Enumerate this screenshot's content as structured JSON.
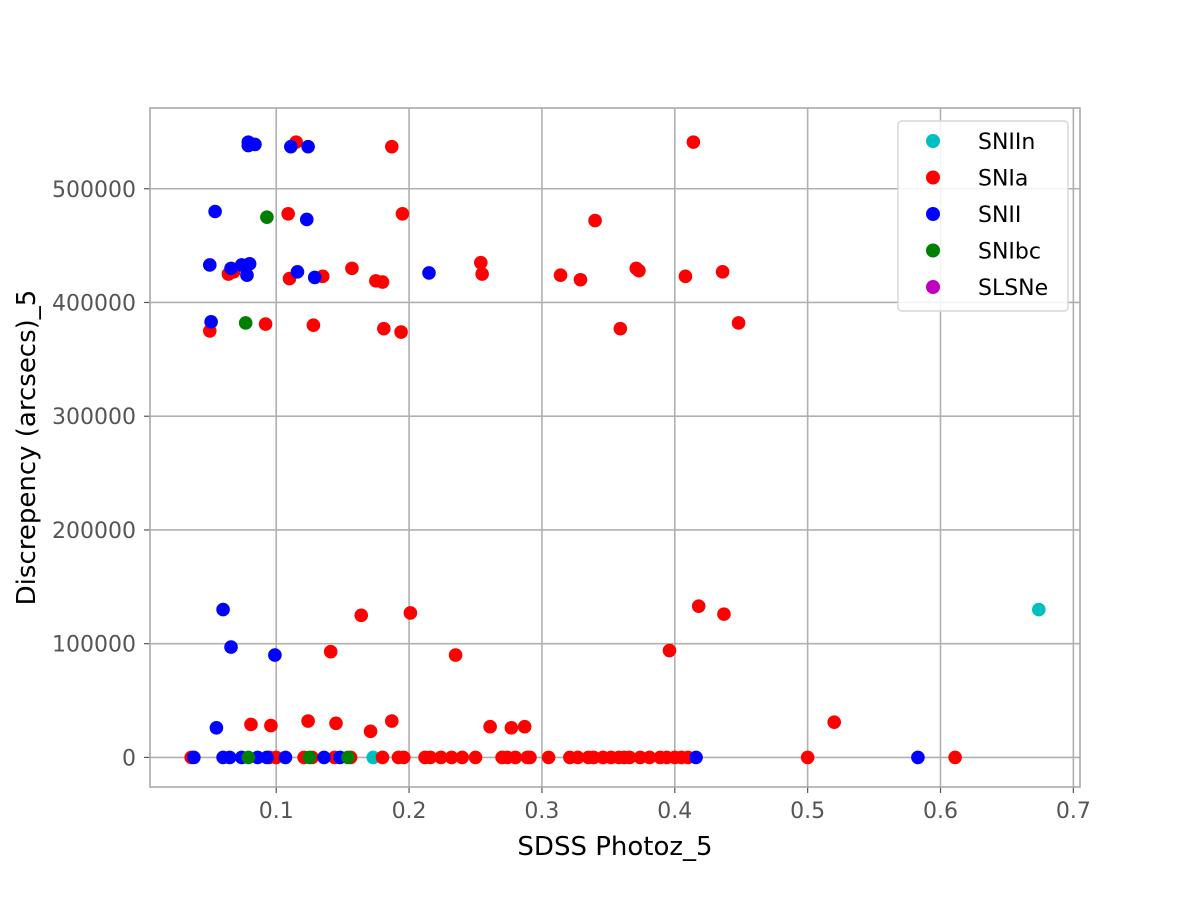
{
  "chart_data": {
    "type": "scatter",
    "title": "",
    "xlabel": "SDSS Photoz_5",
    "ylabel": "Discrepency (arcsecs)_5",
    "xlim": [
      0.005,
      0.705
    ],
    "ylim": [
      -26000,
      571000
    ],
    "xticks": [
      0.1,
      0.2,
      0.3,
      0.4,
      0.5,
      0.6,
      0.7
    ],
    "xtick_labels": [
      "0.1",
      "0.2",
      "0.3",
      "0.4",
      "0.5",
      "0.6",
      "0.7"
    ],
    "yticks": [
      0,
      100000,
      200000,
      300000,
      400000,
      500000
    ],
    "ytick_labels": [
      "0",
      "100000",
      "200000",
      "300000",
      "400000",
      "500000"
    ],
    "grid": true,
    "legend_position": "top-right",
    "series": [
      {
        "name": "SNIIn",
        "color": "#00bfbf",
        "points": [
          [
            0.674,
            130000
          ],
          [
            0.173,
            0
          ]
        ]
      },
      {
        "name": "SNIa",
        "color": "#ff0000",
        "points": [
          [
            0.115,
            541000
          ],
          [
            0.187,
            537000
          ],
          [
            0.414,
            541000
          ],
          [
            0.109,
            478000
          ],
          [
            0.195,
            478000
          ],
          [
            0.34,
            472000
          ],
          [
            0.064,
            425000
          ],
          [
            0.068,
            427000
          ],
          [
            0.11,
            421000
          ],
          [
            0.135,
            423000
          ],
          [
            0.157,
            430000
          ],
          [
            0.175,
            419000
          ],
          [
            0.18,
            418000
          ],
          [
            0.254,
            435000
          ],
          [
            0.255,
            425000
          ],
          [
            0.314,
            424000
          ],
          [
            0.329,
            420000
          ],
          [
            0.371,
            430000
          ],
          [
            0.373,
            428000
          ],
          [
            0.408,
            423000
          ],
          [
            0.436,
            427000
          ],
          [
            0.05,
            375000
          ],
          [
            0.092,
            381000
          ],
          [
            0.128,
            380000
          ],
          [
            0.181,
            377000
          ],
          [
            0.194,
            374000
          ],
          [
            0.359,
            377000
          ],
          [
            0.448,
            382000
          ],
          [
            0.164,
            125000
          ],
          [
            0.201,
            127000
          ],
          [
            0.141,
            93000
          ],
          [
            0.235,
            90000
          ],
          [
            0.418,
            133000
          ],
          [
            0.437,
            126000
          ],
          [
            0.396,
            94000
          ],
          [
            0.081,
            29000
          ],
          [
            0.096,
            28000
          ],
          [
            0.124,
            32000
          ],
          [
            0.145,
            30000
          ],
          [
            0.171,
            23000
          ],
          [
            0.187,
            32000
          ],
          [
            0.261,
            27000
          ],
          [
            0.277,
            26000
          ],
          [
            0.287,
            27000
          ],
          [
            0.52,
            31000
          ],
          [
            0.036,
            0
          ],
          [
            0.095,
            0
          ],
          [
            0.1,
            0
          ],
          [
            0.121,
            0
          ],
          [
            0.127,
            0
          ],
          [
            0.144,
            0
          ],
          [
            0.156,
            0
          ],
          [
            0.18,
            0
          ],
          [
            0.192,
            0
          ],
          [
            0.196,
            0
          ],
          [
            0.212,
            0
          ],
          [
            0.216,
            0
          ],
          [
            0.224,
            0
          ],
          [
            0.232,
            0
          ],
          [
            0.24,
            0
          ],
          [
            0.25,
            0
          ],
          [
            0.27,
            0
          ],
          [
            0.274,
            0
          ],
          [
            0.28,
            0
          ],
          [
            0.289,
            0
          ],
          [
            0.291,
            0
          ],
          [
            0.305,
            0
          ],
          [
            0.321,
            0
          ],
          [
            0.327,
            0
          ],
          [
            0.335,
            0
          ],
          [
            0.339,
            0
          ],
          [
            0.346,
            0
          ],
          [
            0.352,
            0
          ],
          [
            0.358,
            0
          ],
          [
            0.362,
            0
          ],
          [
            0.366,
            0
          ],
          [
            0.374,
            0
          ],
          [
            0.381,
            0
          ],
          [
            0.389,
            0
          ],
          [
            0.394,
            0
          ],
          [
            0.4,
            0
          ],
          [
            0.405,
            0
          ],
          [
            0.41,
            0
          ],
          [
            0.5,
            0
          ],
          [
            0.611,
            0
          ]
        ]
      },
      {
        "name": "SNII",
        "color": "#0000ff",
        "points": [
          [
            0.079,
            541000
          ],
          [
            0.079,
            538000
          ],
          [
            0.084,
            539000
          ],
          [
            0.111,
            537000
          ],
          [
            0.124,
            537000
          ],
          [
            0.054,
            480000
          ],
          [
            0.123,
            473000
          ],
          [
            0.05,
            433000
          ],
          [
            0.066,
            430000
          ],
          [
            0.074,
            433000
          ],
          [
            0.08,
            434000
          ],
          [
            0.078,
            424000
          ],
          [
            0.116,
            427000
          ],
          [
            0.129,
            422000
          ],
          [
            0.215,
            426000
          ],
          [
            0.051,
            383000
          ],
          [
            0.06,
            130000
          ],
          [
            0.066,
            97000
          ],
          [
            0.099,
            90000
          ],
          [
            0.055,
            26000
          ],
          [
            0.038,
            0
          ],
          [
            0.06,
            0
          ],
          [
            0.065,
            0
          ],
          [
            0.074,
            0
          ],
          [
            0.086,
            0
          ],
          [
            0.093,
            0
          ],
          [
            0.107,
            0
          ],
          [
            0.136,
            0
          ],
          [
            0.148,
            0
          ],
          [
            0.416,
            0
          ],
          [
            0.583,
            0
          ]
        ]
      },
      {
        "name": "SNIbc",
        "color": "#008000",
        "points": [
          [
            0.093,
            475000
          ],
          [
            0.077,
            382000
          ],
          [
            0.079,
            0
          ],
          [
            0.125,
            0
          ],
          [
            0.154,
            0
          ]
        ]
      },
      {
        "name": "SLSNe",
        "color": "#bf00bf",
        "points": []
      }
    ]
  }
}
